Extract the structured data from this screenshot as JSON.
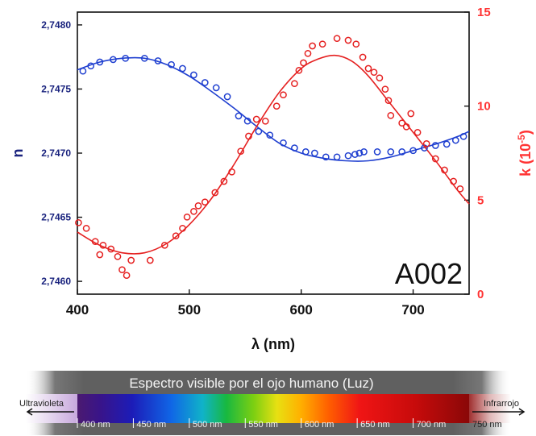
{
  "chart_data": {
    "type": "scatter",
    "xlabel": "λ (nm)",
    "ylabel_left": "n",
    "ylabel_right_base": "k (10",
    "ylabel_right_exp": "-5",
    "ylabel_right_close": ")",
    "xlim": [
      400,
      750
    ],
    "ylim_left": [
      2.7459,
      2.7481
    ],
    "ylim_right": [
      0,
      15
    ],
    "x_ticks": [
      "400",
      "500",
      "600",
      "700"
    ],
    "x_tick_values": [
      400,
      500,
      600,
      700
    ],
    "y_left_ticks": [
      "2,7460",
      "2,7465",
      "2,7470",
      "2,7475",
      "2,7480"
    ],
    "y_left_tick_values": [
      2.746,
      2.7465,
      2.747,
      2.7475,
      2.748
    ],
    "y_right_ticks": [
      "0",
      "5",
      "10",
      "15"
    ],
    "y_right_tick_values": [
      0,
      5,
      10,
      15
    ],
    "annotation": "A002",
    "grid": false,
    "series": [
      {
        "axis": "left",
        "color": "#1f3fd0",
        "points": [
          [
            405,
            2.74764
          ],
          [
            412,
            2.74768
          ],
          [
            420,
            2.74771
          ],
          [
            432,
            2.74773
          ],
          [
            443,
            2.74774
          ],
          [
            460,
            2.74774
          ],
          [
            472,
            2.74772
          ],
          [
            484,
            2.74769
          ],
          [
            494,
            2.74766
          ],
          [
            504,
            2.74761
          ],
          [
            514,
            2.74755
          ],
          [
            524,
            2.74751
          ],
          [
            534,
            2.74744
          ],
          [
            544,
            2.74729
          ],
          [
            552,
            2.74725
          ],
          [
            562,
            2.74717
          ],
          [
            572,
            2.74714
          ],
          [
            584,
            2.74708
          ],
          [
            594,
            2.74704
          ],
          [
            604,
            2.74701
          ],
          [
            612,
            2.747
          ],
          [
            622,
            2.74697
          ],
          [
            632,
            2.74697
          ],
          [
            642,
            2.74698
          ],
          [
            648,
            2.74699
          ],
          [
            652,
            2.747
          ],
          [
            656,
            2.74701
          ],
          [
            668,
            2.74701
          ],
          [
            680,
            2.74701
          ],
          [
            690,
            2.74701
          ],
          [
            700,
            2.74702
          ],
          [
            710,
            2.74704
          ],
          [
            720,
            2.74706
          ],
          [
            730,
            2.74707
          ],
          [
            738,
            2.7471
          ],
          [
            745,
            2.74713
          ]
        ],
        "fit": [
          [
            400,
            2.74765
          ],
          [
            420,
            2.74771
          ],
          [
            440,
            2.74774
          ],
          [
            460,
            2.74774
          ],
          [
            480,
            2.74769
          ],
          [
            500,
            2.7476
          ],
          [
            520,
            2.74748
          ],
          [
            540,
            2.74735
          ],
          [
            560,
            2.74721
          ],
          [
            580,
            2.74708
          ],
          [
            600,
            2.747
          ],
          [
            620,
            2.74696
          ],
          [
            640,
            2.74694
          ],
          [
            660,
            2.74694
          ],
          [
            680,
            2.74697
          ],
          [
            700,
            2.74702
          ],
          [
            720,
            2.74707
          ],
          [
            740,
            2.74713
          ],
          [
            750,
            2.74717
          ]
        ]
      },
      {
        "axis": "right",
        "color": "#e52020",
        "points": [
          [
            401,
            3.8
          ],
          [
            408,
            3.5
          ],
          [
            416,
            2.8
          ],
          [
            420,
            2.1
          ],
          [
            423,
            2.6
          ],
          [
            430,
            2.4
          ],
          [
            436,
            2.0
          ],
          [
            440,
            1.3
          ],
          [
            444,
            1.0
          ],
          [
            448,
            1.8
          ],
          [
            465,
            1.8
          ],
          [
            478,
            2.6
          ],
          [
            488,
            3.1
          ],
          [
            494,
            3.5
          ],
          [
            498,
            4.1
          ],
          [
            504,
            4.4
          ],
          [
            508,
            4.7
          ],
          [
            514,
            4.9
          ],
          [
            523,
            5.4
          ],
          [
            531,
            6.0
          ],
          [
            538,
            6.5
          ],
          [
            546,
            7.6
          ],
          [
            553,
            8.4
          ],
          [
            560,
            9.3
          ],
          [
            568,
            9.2
          ],
          [
            578,
            10.0
          ],
          [
            584,
            10.6
          ],
          [
            594,
            11.2
          ],
          [
            598,
            11.9
          ],
          [
            602,
            12.3
          ],
          [
            606,
            12.8
          ],
          [
            610,
            13.2
          ],
          [
            619,
            13.3
          ],
          [
            632,
            13.6
          ],
          [
            642,
            13.5
          ],
          [
            649,
            13.3
          ],
          [
            655,
            12.6
          ],
          [
            660,
            12.0
          ],
          [
            665,
            11.8
          ],
          [
            670,
            11.5
          ],
          [
            675,
            10.9
          ],
          [
            678,
            10.3
          ],
          [
            680,
            9.5
          ],
          [
            690,
            9.1
          ],
          [
            694,
            8.9
          ],
          [
            698,
            9.6
          ],
          [
            704,
            8.6
          ],
          [
            712,
            8.0
          ],
          [
            720,
            7.2
          ],
          [
            728,
            6.6
          ],
          [
            736,
            6.0
          ],
          [
            742,
            5.6
          ]
        ],
        "fit": [
          [
            400,
            3.3
          ],
          [
            420,
            2.6
          ],
          [
            440,
            2.2
          ],
          [
            460,
            2.2
          ],
          [
            480,
            2.7
          ],
          [
            500,
            3.7
          ],
          [
            520,
            5.1
          ],
          [
            540,
            6.9
          ],
          [
            560,
            8.9
          ],
          [
            580,
            10.7
          ],
          [
            600,
            12.0
          ],
          [
            615,
            12.5
          ],
          [
            630,
            12.7
          ],
          [
            645,
            12.4
          ],
          [
            660,
            11.6
          ],
          [
            680,
            10.1
          ],
          [
            700,
            8.6
          ],
          [
            720,
            7.1
          ],
          [
            740,
            5.5
          ],
          [
            750,
            4.8
          ]
        ]
      }
    ]
  },
  "spectrum": {
    "title": "Espectro visible por el ojo humano (Luz)",
    "left_label": "Ultravioleta",
    "right_label": "Infrarrojo",
    "nm_labels": [
      "400 nm",
      "450 nm",
      "500 nm",
      "550 nm",
      "600 nm",
      "650 nm",
      "700 nm"
    ],
    "end_label": "750 nm"
  }
}
